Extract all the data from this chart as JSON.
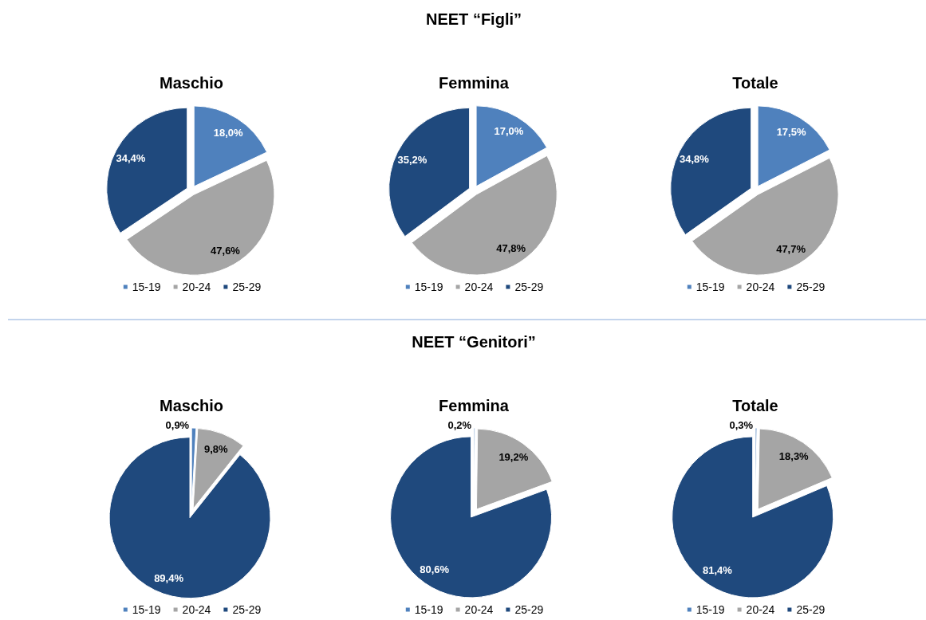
{
  "chart_data": [
    {
      "type": "pie",
      "title": "Maschio",
      "categories": [
        "15-19",
        "20-24",
        "25-29"
      ],
      "values": [
        18.0,
        47.6,
        34.4
      ],
      "colors": [
        "#4f81bd",
        "#a5a5a5",
        "#1f497d"
      ],
      "value_labels": [
        "18,0%",
        "47,6%",
        "34,4%"
      ],
      "legend": "bottom"
    },
    {
      "type": "pie",
      "title": "Femmina",
      "categories": [
        "15-19",
        "20-24",
        "25-29"
      ],
      "values": [
        17.0,
        47.8,
        35.2
      ],
      "colors": [
        "#4f81bd",
        "#a5a5a5",
        "#1f497d"
      ],
      "value_labels": [
        "17,0%",
        "47,8%",
        "35,2%"
      ],
      "legend": "bottom",
      "annotations": [
        "NEET “Figli”"
      ]
    },
    {
      "type": "pie",
      "title": "Totale",
      "categories": [
        "15-19",
        "20-24",
        "25-29"
      ],
      "values": [
        17.5,
        47.7,
        34.8
      ],
      "colors": [
        "#4f81bd",
        "#a5a5a5",
        "#1f497d"
      ],
      "value_labels": [
        "17,5%",
        "47,7%",
        "34,8%"
      ],
      "legend": "bottom"
    },
    {
      "type": "pie",
      "title": "Maschio",
      "categories": [
        "15-19",
        "20-24",
        "25-29"
      ],
      "values": [
        0.9,
        9.8,
        89.4
      ],
      "colors": [
        "#4f81bd",
        "#a5a5a5",
        "#1f497d"
      ],
      "value_labels": [
        "0,9%",
        "9,8%",
        "89,4%"
      ],
      "legend": "bottom"
    },
    {
      "type": "pie",
      "title": "Femmina",
      "categories": [
        "15-19",
        "20-24",
        "25-29"
      ],
      "values": [
        0.2,
        19.2,
        80.6
      ],
      "colors": [
        "#4f81bd",
        "#a5a5a5",
        "#1f497d"
      ],
      "value_labels": [
        "0,2%",
        "19,2%",
        "80,6%"
      ],
      "legend": "bottom",
      "annotations": [
        "NEET “Genitori”"
      ]
    },
    {
      "type": "pie",
      "title": "Totale",
      "categories": [
        "15-19",
        "20-24",
        "25-29"
      ],
      "values": [
        0.3,
        18.3,
        81.4
      ],
      "colors": [
        "#4f81bd",
        "#a5a5a5",
        "#1f497d"
      ],
      "value_labels": [
        "0,3%",
        "18,3%",
        "81,4%"
      ],
      "legend": "bottom"
    }
  ]
}
